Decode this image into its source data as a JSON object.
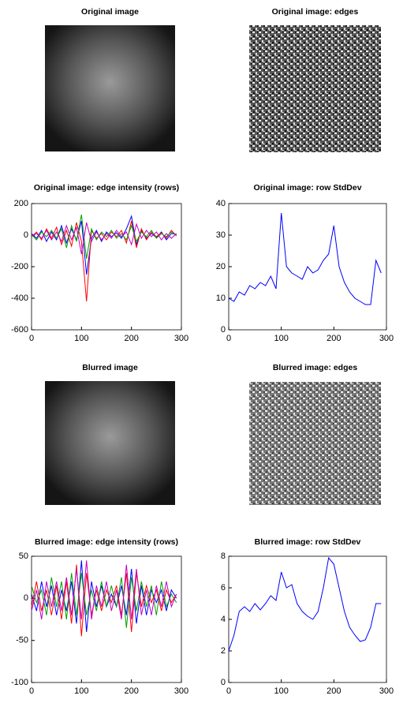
{
  "chart_data": [
    {
      "type": "image",
      "title": "Original image"
    },
    {
      "type": "image",
      "title": "Original image: edges"
    },
    {
      "type": "line",
      "title": "Original image:  edge intensity (rows)",
      "x": [
        0,
        10,
        20,
        30,
        40,
        50,
        60,
        70,
        80,
        90,
        100,
        110,
        120,
        130,
        140,
        150,
        160,
        170,
        180,
        190,
        200,
        210,
        220,
        230,
        240,
        250,
        260,
        270,
        280,
        290
      ],
      "series": [
        {
          "color": "#0000ff",
          "values": [
            10,
            -20,
            30,
            -40,
            20,
            -30,
            60,
            -50,
            40,
            -30,
            90,
            -250,
            -20,
            30,
            -40,
            20,
            -10,
            15,
            -20,
            40,
            120,
            -60,
            30,
            -20,
            10,
            -15,
            20,
            -30,
            10,
            5
          ]
        },
        {
          "color": "#ff0000",
          "values": [
            -10,
            20,
            -30,
            40,
            -20,
            50,
            -60,
            30,
            -70,
            80,
            -40,
            -420,
            30,
            -20,
            10,
            -30,
            20,
            -10,
            30,
            -50,
            90,
            -80,
            40,
            -30,
            20,
            -10,
            15,
            -20,
            30,
            -5
          ]
        },
        {
          "color": "#00a000",
          "values": [
            5,
            -30,
            20,
            -10,
            30,
            -20,
            40,
            -80,
            60,
            -40,
            130,
            -150,
            40,
            -30,
            20,
            -10,
            30,
            -20,
            10,
            -30,
            60,
            -40,
            20,
            -10,
            30,
            -20,
            10,
            -10,
            20,
            0
          ]
        },
        {
          "color": "#c000c0",
          "values": [
            -5,
            10,
            -20,
            30,
            -30,
            20,
            -40,
            60,
            -30,
            50,
            -120,
            80,
            -40,
            20,
            -30,
            10,
            -20,
            30,
            -10,
            20,
            -60,
            70,
            -20,
            30,
            -10,
            20,
            -30,
            10,
            -20,
            10
          ]
        }
      ],
      "xlim": [
        0,
        300
      ],
      "xticks": [
        0,
        100,
        200,
        300
      ],
      "ylim": [
        -600,
        200
      ],
      "yticks": [
        -600,
        -400,
        -200,
        0,
        200
      ]
    },
    {
      "type": "line",
      "title": "Original image: row StdDev",
      "x": [
        0,
        10,
        20,
        30,
        40,
        50,
        60,
        70,
        80,
        90,
        100,
        110,
        120,
        130,
        140,
        150,
        160,
        170,
        180,
        190,
        200,
        210,
        220,
        230,
        240,
        250,
        260,
        270,
        280,
        290
      ],
      "series": [
        {
          "color": "#0000ff",
          "values": [
            10,
            9,
            12,
            11,
            14,
            13,
            15,
            14,
            17,
            13,
            37,
            20,
            18,
            17,
            16,
            20,
            18,
            19,
            22,
            24,
            33,
            20,
            15,
            12,
            10,
            9,
            8,
            8,
            22,
            18
          ]
        }
      ],
      "xlim": [
        0,
        300
      ],
      "xticks": [
        0,
        100,
        200,
        300
      ],
      "ylim": [
        0,
        40
      ],
      "yticks": [
        0,
        10,
        20,
        30,
        40
      ]
    },
    {
      "type": "image",
      "title": "Blurred image"
    },
    {
      "type": "image",
      "title": "Blurred image: edges"
    },
    {
      "type": "line",
      "title": "Blurred image:  edge intensity (rows)",
      "x": [
        0,
        10,
        20,
        30,
        40,
        50,
        60,
        70,
        80,
        90,
        100,
        110,
        120,
        130,
        140,
        150,
        160,
        170,
        180,
        190,
        200,
        210,
        220,
        230,
        240,
        250,
        260,
        270,
        280,
        290
      ],
      "series": [
        {
          "color": "#0000ff",
          "values": [
            5,
            -15,
            20,
            -10,
            15,
            -20,
            10,
            -15,
            20,
            -30,
            45,
            -40,
            20,
            -10,
            15,
            -10,
            5,
            -10,
            15,
            -20,
            35,
            -30,
            15,
            -20,
            10,
            -5,
            10,
            -15,
            10,
            0
          ]
        },
        {
          "color": "#ff0000",
          "values": [
            -10,
            20,
            -15,
            10,
            -20,
            15,
            -25,
            20,
            -30,
            40,
            -45,
            30,
            -20,
            10,
            -15,
            10,
            -5,
            15,
            -20,
            30,
            -40,
            30,
            -10,
            15,
            -5,
            10,
            -15,
            10,
            -5,
            5
          ]
        },
        {
          "color": "#00a000",
          "values": [
            15,
            -5,
            10,
            -20,
            25,
            -10,
            20,
            -25,
            30,
            -20,
            30,
            -20,
            10,
            -15,
            20,
            -10,
            15,
            -10,
            25,
            -35,
            25,
            -15,
            20,
            -10,
            15,
            -20,
            20,
            -10,
            5,
            -5
          ]
        },
        {
          "color": "#c000c0",
          "values": [
            -15,
            10,
            -25,
            20,
            -10,
            20,
            -15,
            25,
            -20,
            35,
            -25,
            45,
            -25,
            15,
            -10,
            20,
            -15,
            10,
            -25,
            40,
            -25,
            35,
            -20,
            10,
            -20,
            15,
            -10,
            20,
            -10,
            5
          ]
        }
      ],
      "xlim": [
        0,
        300
      ],
      "xticks": [
        0,
        100,
        200,
        300
      ],
      "ylim": [
        -100,
        50
      ],
      "yticks": [
        -100,
        -50,
        0,
        50
      ]
    },
    {
      "type": "line",
      "title": "Blurred image: row StdDev",
      "x": [
        0,
        10,
        20,
        30,
        40,
        50,
        60,
        70,
        80,
        90,
        100,
        110,
        120,
        130,
        140,
        150,
        160,
        170,
        180,
        190,
        200,
        210,
        220,
        230,
        240,
        250,
        260,
        270,
        280,
        290
      ],
      "series": [
        {
          "color": "#0000ff",
          "values": [
            2,
            3,
            4.5,
            4.8,
            4.5,
            5,
            4.6,
            5,
            5.5,
            5.2,
            7,
            6,
            6.2,
            5,
            4.5,
            4.2,
            4,
            4.5,
            6,
            7.9,
            7.5,
            6,
            4.5,
            3.5,
            3,
            2.6,
            2.7,
            3.5,
            5,
            5
          ]
        }
      ],
      "xlim": [
        0,
        300
      ],
      "xticks": [
        0,
        100,
        200,
        300
      ],
      "ylim": [
        0,
        8
      ],
      "yticks": [
        0,
        2,
        4,
        6,
        8
      ]
    }
  ]
}
